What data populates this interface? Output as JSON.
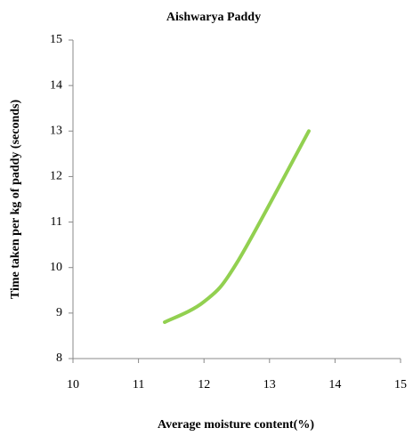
{
  "chart_data": {
    "type": "line",
    "title": "Aishwarya Paddy",
    "x_label": "Average moisture content(%)",
    "y_label": "Time taken per kg of paddy (seconds)",
    "x": [
      11.4,
      12.0,
      12.5,
      13.6
    ],
    "values": [
      8.8,
      9.25,
      10.1,
      13.0
    ],
    "color": "#92d050",
    "xlim": [
      10,
      15
    ],
    "xticks": [
      10,
      11,
      12,
      13,
      14,
      15
    ],
    "ylim": [
      8,
      15
    ],
    "yticks": [
      8,
      9,
      10,
      11,
      12,
      13,
      14,
      15
    ],
    "smooth": true
  }
}
